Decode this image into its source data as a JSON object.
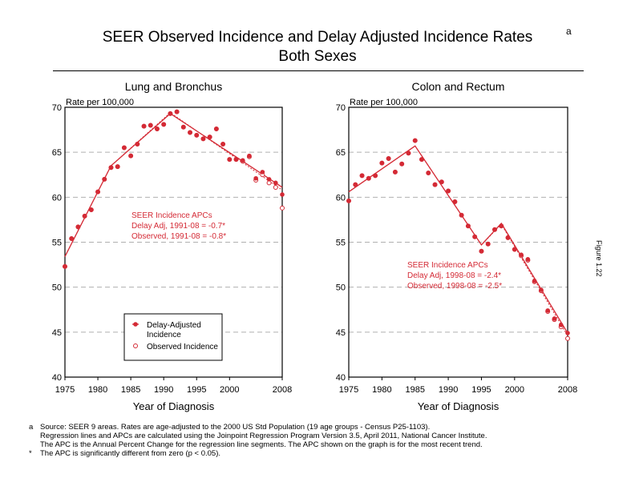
{
  "title": "SEER Observed Incidence and Delay Adjusted Incidence Rates",
  "title_superscript": "a",
  "subtitle": "Both Sexes",
  "figure_label": "Figure 1.22",
  "footnotes": [
    {
      "mark": "a",
      "lines": [
        "Source: SEER 9 areas. Rates are age-adjusted to the 2000 US Std Population (19 age groups - Census P25-1103).",
        "Regression lines and APCs are calculated using the Joinpoint Regression Program Version 3.5, April 2011, National Cancer Institute.",
        "The APC is the Annual Percent Change for the regression line segments. The APC shown on the graph is for the most recent trend."
      ]
    },
    {
      "mark": "*",
      "lines": [
        "The APC is significantly different from zero (p < 0.05)."
      ]
    }
  ],
  "colors": {
    "series": "#d42a35",
    "grid": "#b0b0b0",
    "axis": "#000000"
  },
  "chart_data": [
    {
      "type": "scatter",
      "title": "Lung and Bronchus",
      "ylabel": "Rate per 100,000",
      "xlabel": "Year of Diagnosis",
      "xlim": [
        1975,
        2008
      ],
      "ylim": [
        40,
        70
      ],
      "xticks": [
        1975,
        1980,
        1985,
        1990,
        1995,
        2000,
        2008
      ],
      "yticks": [
        40,
        45,
        50,
        55,
        60,
        65,
        70
      ],
      "grid": "horizontal dashed",
      "legend": {
        "position": "bottom-center",
        "entries": [
          "Delay-Adjusted Incidence",
          "Observed Incidence"
        ]
      },
      "annotation": [
        "SEER Incidence APCs",
        "Delay Adj, 1991-08 = -0.7*",
        "Observed, 1991-08 = -0.8*"
      ],
      "x": [
        1975,
        1976,
        1977,
        1978,
        1979,
        1980,
        1981,
        1982,
        1983,
        1984,
        1985,
        1986,
        1987,
        1988,
        1989,
        1990,
        1991,
        1992,
        1993,
        1994,
        1995,
        1996,
        1997,
        1998,
        1999,
        2000,
        2001,
        2002,
        2003,
        2004,
        2005,
        2006,
        2007,
        2008
      ],
      "series": [
        {
          "name": "Delay-Adjusted Incidence",
          "values": [
            52.3,
            55.4,
            56.7,
            57.9,
            58.6,
            60.6,
            62.0,
            63.3,
            63.4,
            65.5,
            64.6,
            65.9,
            67.9,
            68.0,
            67.6,
            68.1,
            69.3,
            69.5,
            67.8,
            67.2,
            66.9,
            66.5,
            66.7,
            67.6,
            65.9,
            64.2,
            64.2,
            64.1,
            64.6,
            62.1,
            62.8,
            62.0,
            61.6,
            60.3
          ],
          "regression": {
            "x": [
              1975,
              1982,
              1991,
              2008
            ],
            "y": [
              53.4,
              63.5,
              69.3,
              61.1
            ]
          }
        },
        {
          "name": "Observed Incidence",
          "values": [
            52.3,
            55.4,
            56.7,
            57.9,
            58.6,
            60.6,
            62.0,
            63.3,
            63.4,
            65.5,
            64.6,
            65.9,
            67.9,
            68.0,
            67.6,
            68.1,
            69.3,
            69.5,
            67.8,
            67.2,
            66.9,
            66.5,
            66.7,
            67.6,
            65.9,
            64.2,
            64.2,
            64.0,
            64.5,
            61.9,
            62.5,
            61.6,
            61.1,
            58.8
          ],
          "regression": {
            "x": [
              1975,
              1982,
              1991,
              2008
            ],
            "y": [
              53.4,
              63.5,
              69.4,
              60.8
            ]
          }
        }
      ]
    },
    {
      "type": "scatter",
      "title": "Colon and Rectum",
      "ylabel": "Rate per 100,000",
      "xlabel": "Year of Diagnosis",
      "xlim": [
        1975,
        2008
      ],
      "ylim": [
        40,
        70
      ],
      "xticks": [
        1975,
        1980,
        1985,
        1990,
        1995,
        2000,
        2008
      ],
      "yticks": [
        40,
        45,
        50,
        55,
        60,
        65,
        70
      ],
      "grid": "horizontal dashed",
      "annotation": [
        "SEER Incidence APCs",
        "Delay Adj, 1998-08 = -2.4*",
        "Observed, 1998-08 = -2.5*"
      ],
      "x": [
        1975,
        1976,
        1977,
        1978,
        1979,
        1980,
        1981,
        1982,
        1983,
        1984,
        1985,
        1986,
        1987,
        1988,
        1989,
        1990,
        1991,
        1992,
        1993,
        1994,
        1995,
        1996,
        1997,
        1998,
        1999,
        2000,
        2001,
        2002,
        2003,
        2004,
        2005,
        2006,
        2007,
        2008
      ],
      "series": [
        {
          "name": "Delay-Adjusted Incidence",
          "values": [
            59.6,
            61.4,
            62.4,
            62.1,
            62.4,
            63.8,
            64.3,
            62.8,
            63.7,
            64.9,
            66.3,
            64.2,
            62.7,
            61.4,
            61.7,
            60.7,
            59.5,
            58.0,
            56.8,
            55.6,
            54.0,
            54.8,
            56.4,
            56.8,
            55.5,
            54.2,
            53.6,
            53.1,
            50.7,
            49.7,
            47.4,
            46.5,
            45.8,
            44.9
          ],
          "regression": {
            "x": [
              1975,
              1985,
              1995,
              1998,
              2008
            ],
            "y": [
              60.6,
              65.7,
              54.7,
              57.1,
              44.9
            ]
          }
        },
        {
          "name": "Observed Incidence",
          "values": [
            59.6,
            61.4,
            62.4,
            62.1,
            62.4,
            63.8,
            64.3,
            62.8,
            63.7,
            64.9,
            66.3,
            64.2,
            62.7,
            61.4,
            61.7,
            60.7,
            59.5,
            58.0,
            56.8,
            55.6,
            54.0,
            54.8,
            56.4,
            56.8,
            55.5,
            54.2,
            53.5,
            53.0,
            50.6,
            49.6,
            47.3,
            46.4,
            45.6,
            44.3
          ],
          "regression": {
            "x": [
              1975,
              1985,
              1995,
              1998,
              2008
            ],
            "y": [
              60.6,
              65.7,
              54.7,
              57.0,
              44.6
            ]
          }
        }
      ]
    }
  ]
}
